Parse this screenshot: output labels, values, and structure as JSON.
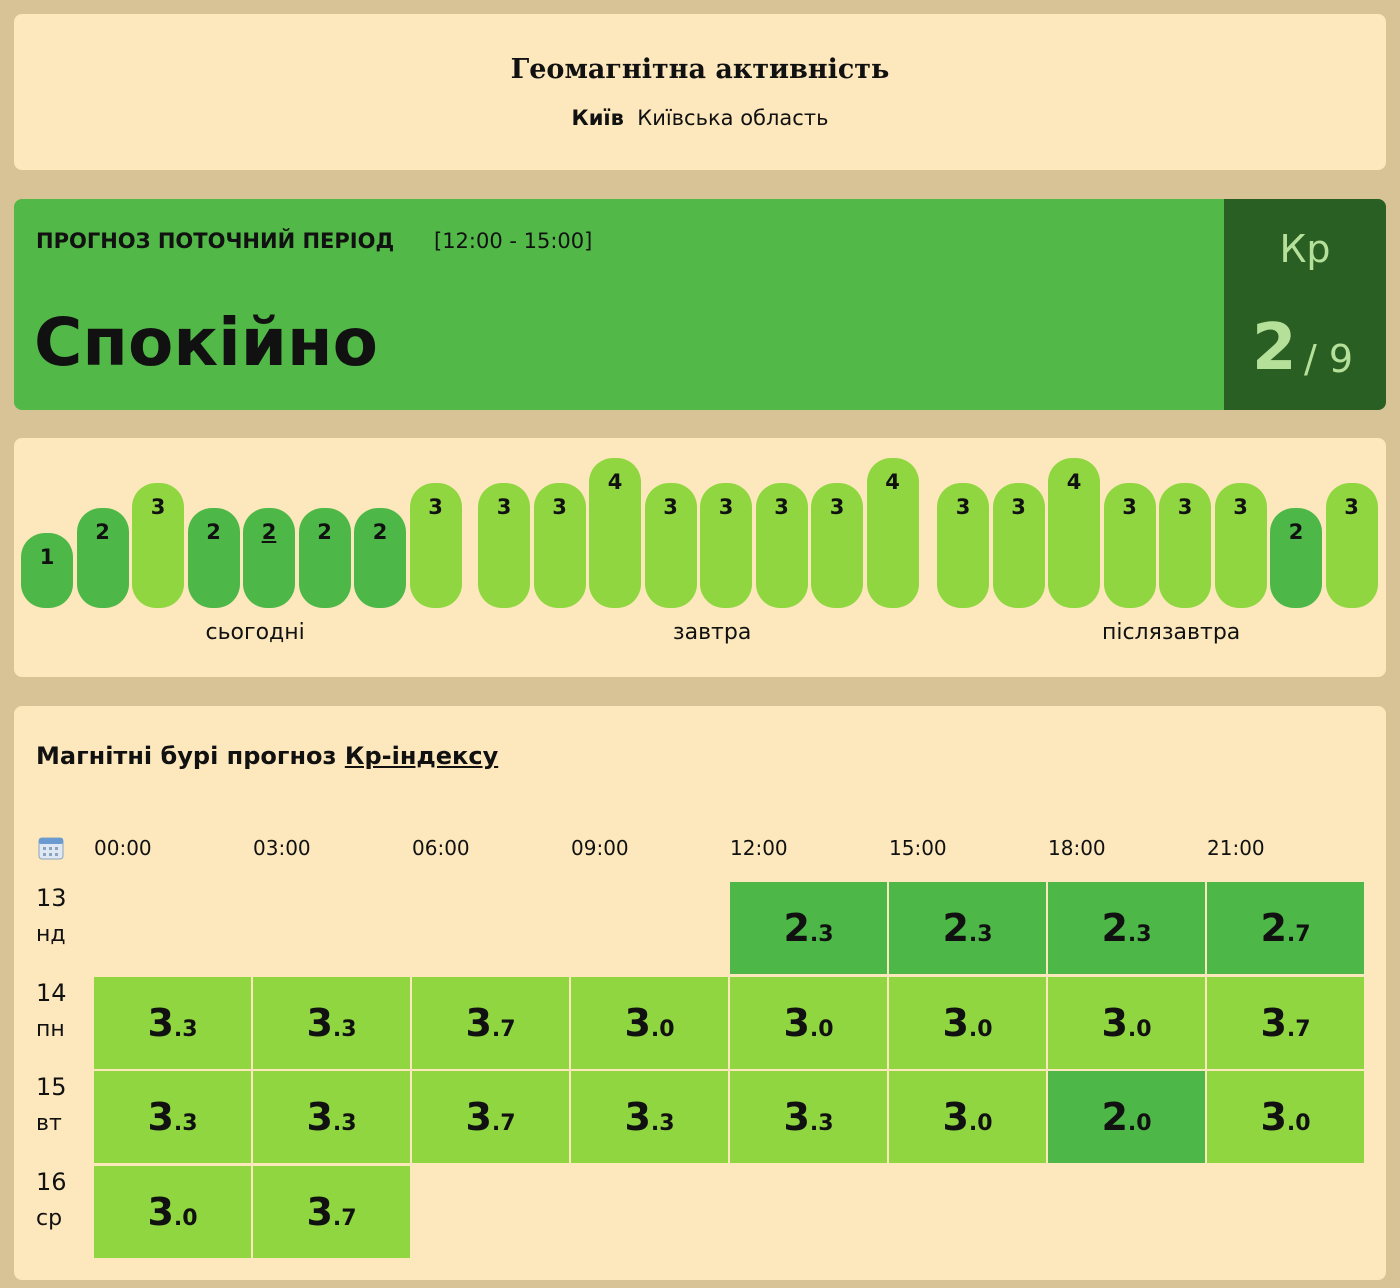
{
  "header": {
    "title": "Геомагнітна активність",
    "city": "Київ",
    "region": "Київська область"
  },
  "current": {
    "label": "ПРОГНОЗ ПОТОЧНИЙ ПЕРІОД",
    "period": "[12:00 - 15:00]",
    "status": "Спокійно",
    "index_name": "Кр",
    "value": 2,
    "max_label": "/ 9"
  },
  "forecast": {
    "current_bar": 4,
    "groups": [
      {
        "label": "сьогодні",
        "values": [
          1,
          2,
          3,
          2,
          2,
          2,
          2,
          3
        ]
      },
      {
        "label": "завтра",
        "values": [
          3,
          3,
          4,
          3,
          3,
          3,
          3,
          4
        ]
      },
      {
        "label": "післязавтра",
        "values": [
          3,
          3,
          4,
          3,
          3,
          3,
          2,
          3
        ]
      }
    ]
  },
  "table": {
    "title": "Магнітні бурі прогноз",
    "link": "Кр-індексу",
    "times": [
      "00:00",
      "03:00",
      "06:00",
      "09:00",
      "12:00",
      "15:00",
      "18:00",
      "21:00"
    ],
    "rows": [
      {
        "day": "13",
        "weekday": "нд",
        "values": [
          null,
          null,
          null,
          null,
          "2.3",
          "2.3",
          "2.3",
          "2.7"
        ]
      },
      {
        "day": "14",
        "weekday": "пн",
        "values": [
          "3.3",
          "3.3",
          "3.7",
          "3.0",
          "3.0",
          "3.0",
          "3.0",
          "3.7"
        ]
      },
      {
        "day": "15",
        "weekday": "вт",
        "values": [
          "3.3",
          "3.3",
          "3.7",
          "3.3",
          "3.3",
          "3.0",
          "2.0",
          "3.0"
        ]
      },
      {
        "day": "16",
        "weekday": "ср",
        "values": [
          "3.0",
          "3.7",
          null,
          null,
          null,
          null,
          null,
          null
        ]
      }
    ]
  }
}
